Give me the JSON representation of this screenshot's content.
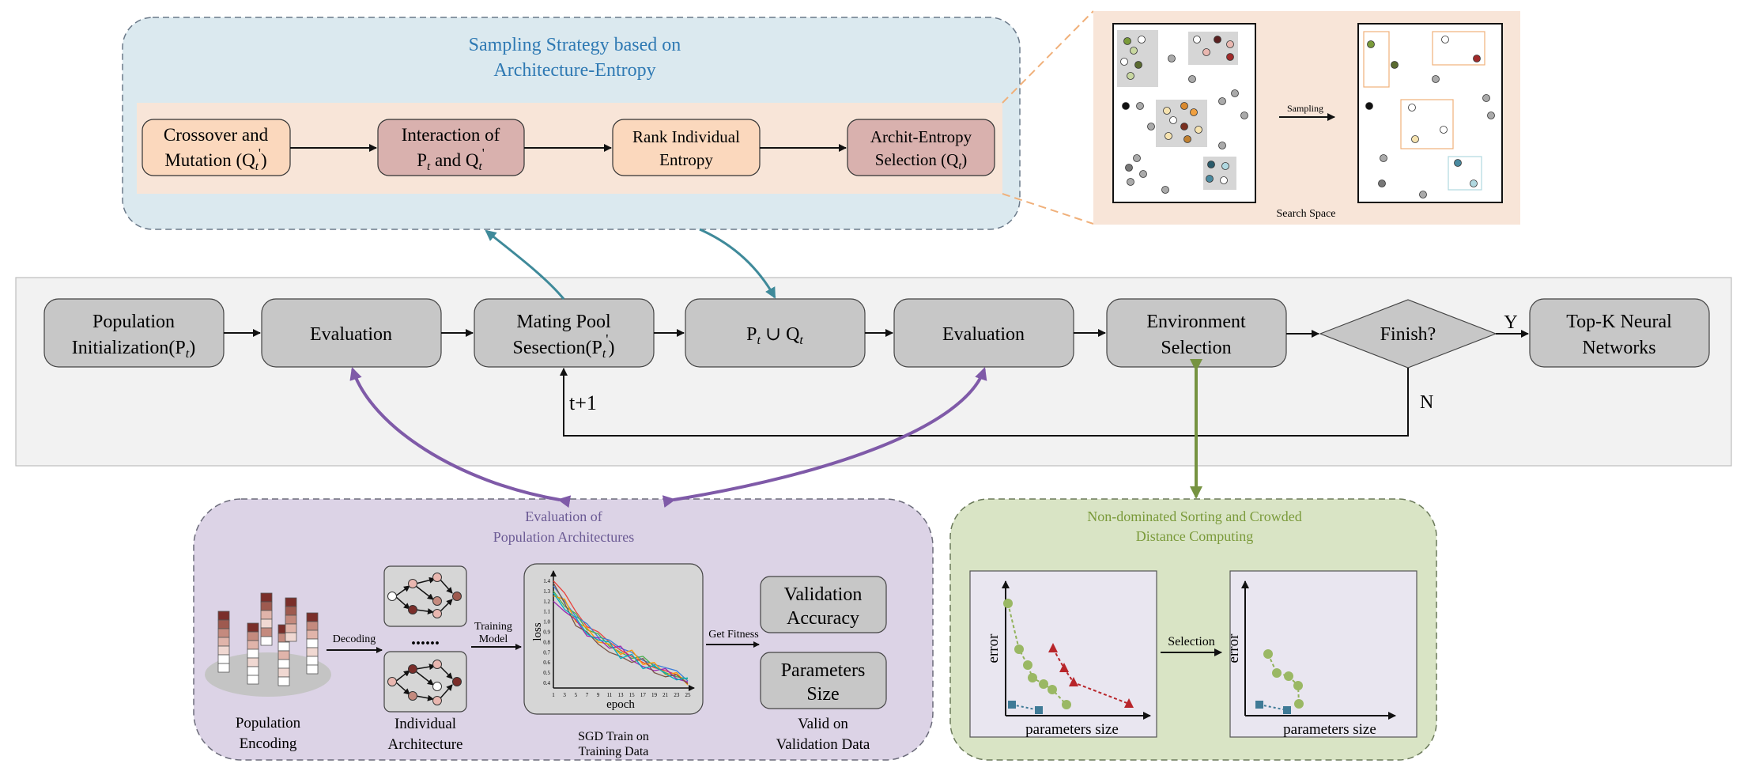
{
  "sampling": {
    "title_line1": "Sampling Strategy based on",
    "title_line2": "Architecture-Entropy",
    "boxes": [
      {
        "line1": "Crossover and",
        "line2_pre": "Mutation (Q",
        "line2_sub": "t",
        "line2_sup": "'",
        "line2_post": ")"
      },
      {
        "line1": "Interaction of",
        "line2_pre": "P",
        "line2_sub": "t",
        "line2_mid": " and Q",
        "line2_sub2": "t",
        "line2_sup2": "'"
      },
      {
        "line1": "Rank Individual",
        "line2": "Entropy"
      },
      {
        "line1": "Archit-Entropy",
        "line2_pre": "Selection (Q",
        "line2_sub": "t",
        "line2_post": ")"
      }
    ]
  },
  "search_space": {
    "sampling_label": "Sampling",
    "caption": "Search Space"
  },
  "main_flow": {
    "nodes": [
      {
        "line1": "Population",
        "line2_pre": "Initialization(P",
        "line2_sub": "t",
        "line2_post": ")"
      },
      {
        "label": "Evaluation"
      },
      {
        "line1": "Mating Pool",
        "line2_pre": "Sesection(P",
        "line2_sub": "t",
        "line2_sup": "'",
        "line2_post": ")"
      },
      {
        "p": "P",
        "sub1": "t",
        "union": " ∪ Q",
        "sub2": "t"
      },
      {
        "label": "Evaluation"
      },
      {
        "line1": "Environment",
        "line2": "Selection"
      },
      {
        "label": "Finish?"
      },
      {
        "line1": "Top-K Neural",
        "line2": "Networks"
      }
    ],
    "yes_label": "Y",
    "no_label": "N",
    "loop_label": "t+1"
  },
  "evaluation_panel": {
    "title_line1": "Evaluation of",
    "title_line2": "Population Architectures",
    "pop_encoding": [
      "Population",
      "Encoding"
    ],
    "decoding_label": "Decoding",
    "dots": "......",
    "individual_arch": [
      "Individual",
      "Architecture"
    ],
    "training_model": [
      "Training",
      "Model"
    ],
    "sgd_caption": [
      "SGD Train on",
      "Training Data"
    ],
    "get_fitness": "Get Fitness",
    "validation_accuracy": [
      "Validation",
      "Accuracy"
    ],
    "parameters_size_box": [
      "Parameters",
      "Size"
    ],
    "valid_caption": [
      "Valid on",
      "Validation Data"
    ]
  },
  "chart_data": {
    "type": "line",
    "xlabel": "epoch",
    "ylabel": "loss",
    "x_ticks": [
      "1",
      "3",
      "5",
      "7",
      "9",
      "11",
      "13",
      "15",
      "17",
      "19",
      "21",
      "23",
      "25"
    ],
    "y_ticks": [
      "0.4",
      "0.5",
      "0.6",
      "0.7",
      "0.8",
      "0.9",
      "1.0",
      "1.1",
      "1.2",
      "1.3",
      "1.4"
    ],
    "xlim": [
      1,
      25
    ],
    "ylim": [
      0.35,
      1.45
    ],
    "x": [
      1,
      3,
      5,
      7,
      9,
      11,
      13,
      15,
      17,
      19,
      21,
      23,
      25
    ],
    "series": [
      {
        "color": "#e8413c",
        "values": [
          1.4,
          1.28,
          1.1,
          0.95,
          0.9,
          0.8,
          0.72,
          0.66,
          0.6,
          0.55,
          0.52,
          0.48,
          0.4
        ]
      },
      {
        "color": "#3b7dd8",
        "values": [
          1.35,
          1.2,
          1.05,
          0.98,
          0.85,
          0.82,
          0.74,
          0.7,
          0.62,
          0.58,
          0.55,
          0.52,
          0.42
        ]
      },
      {
        "color": "#4caf50",
        "values": [
          1.3,
          1.15,
          1.08,
          0.92,
          0.88,
          0.76,
          0.7,
          0.64,
          0.66,
          0.56,
          0.5,
          0.46,
          0.44
        ]
      },
      {
        "color": "#ff9800",
        "values": [
          1.25,
          1.22,
          1.0,
          0.94,
          0.8,
          0.78,
          0.68,
          0.72,
          0.58,
          0.6,
          0.48,
          0.5,
          0.38
        ]
      },
      {
        "color": "#9c27b0",
        "values": [
          1.2,
          1.1,
          1.02,
          0.86,
          0.84,
          0.74,
          0.76,
          0.62,
          0.56,
          0.52,
          0.54,
          0.44,
          0.41
        ]
      },
      {
        "color": "#795548",
        "values": [
          1.38,
          1.18,
          0.96,
          0.9,
          0.78,
          0.7,
          0.66,
          0.6,
          0.64,
          0.5,
          0.46,
          0.48,
          0.39
        ]
      },
      {
        "color": "#00acc1",
        "values": [
          1.28,
          1.12,
          1.04,
          0.88,
          0.82,
          0.8,
          0.64,
          0.68,
          0.54,
          0.57,
          0.49,
          0.43,
          0.45
        ]
      }
    ]
  },
  "nds_panel": {
    "title_line1": "Non-dominated Sorting and Crowded",
    "title_line2": "Distance Computing",
    "selection_label": "Selection",
    "ylabel": "error",
    "xlabel": "parameters size"
  }
}
